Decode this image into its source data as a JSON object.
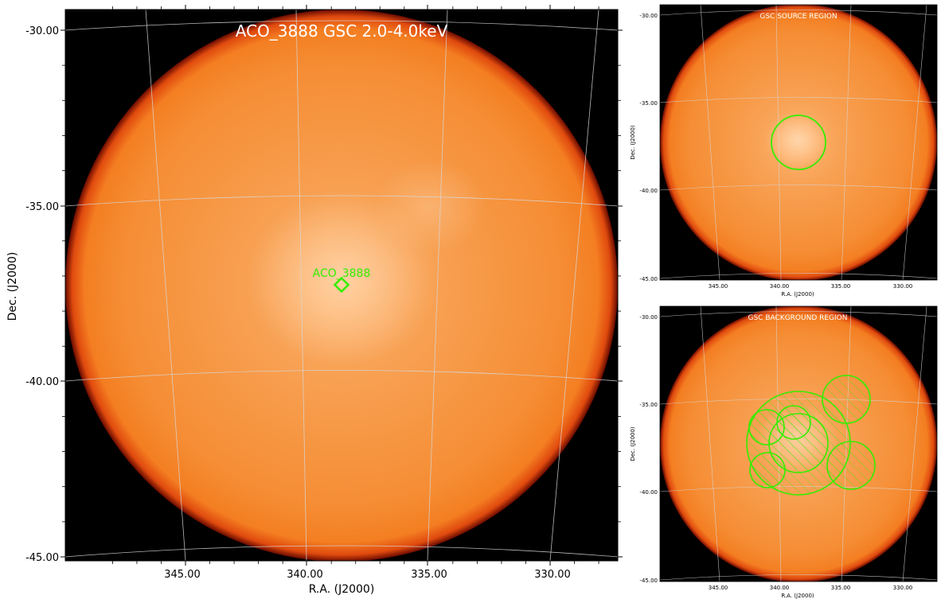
{
  "main_panel": {
    "title": "ACO_3888 GSC 2.0-4.0keV",
    "xlabel": "R.A. (J2000)",
    "ylabel": "Dec. (J2000)",
    "dec_ticks": [
      "-30.00",
      "-35.00",
      "-40.00",
      "-45.00"
    ],
    "ra_ticks": [
      "345.00",
      "340.00",
      "335.00",
      "330.00"
    ],
    "marker_label": "ACO_3888"
  },
  "source_panel": {
    "title": "GSC SOURCE REGION",
    "xlabel": "R.A. (J2000)",
    "ylabel": "Dec. (J2000)",
    "dec_ticks": [
      "-30.00",
      "-35.00",
      "-40.00",
      "-45.00"
    ],
    "ra_ticks": [
      "345.00",
      "340.00",
      "335.00",
      "330.00"
    ]
  },
  "background_panel": {
    "title": "GSC BACKGROUND REGION",
    "xlabel": "R.A. (J2000)",
    "ylabel": "Dec. (J2000)",
    "dec_ticks": [
      "-30.00",
      "-35.00",
      "-40.00",
      "-45.00"
    ],
    "ra_ticks": [
      "345.00",
      "340.00",
      "335.00",
      "330.00"
    ]
  },
  "colors": {
    "field_orange": "#f58a2e",
    "rim_red": "#c81e05",
    "background": "#000000",
    "region_green": "#33ee00",
    "grid": "#d8d8d8"
  }
}
